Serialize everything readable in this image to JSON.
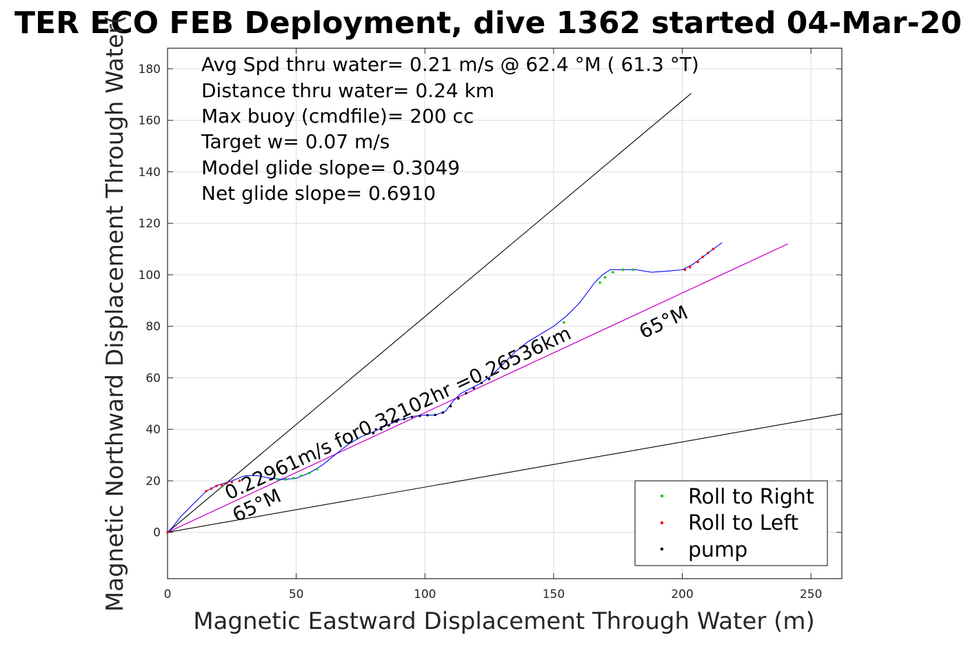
{
  "chart_data": {
    "type": "line",
    "title": "TER ECO FEB Deployment, dive 1362 started 04-Mar-20",
    "xlabel": "Magnetic Eastward Displacement Through Water (m)",
    "ylabel": "Magnetic Northward Displacement Through Water(",
    "xlim": [
      0,
      262
    ],
    "ylim": [
      -18,
      188
    ],
    "xticks": [
      0,
      50,
      100,
      150,
      200,
      250
    ],
    "yticks": [
      0,
      20,
      40,
      60,
      80,
      100,
      120,
      140,
      160,
      180
    ],
    "grid": true,
    "legend_position": "bottom-right",
    "info_lines": [
      "Avg Spd thru water=  0.21 m/s @  62.4 °M ( 61.3 °T)",
      "Distance thru water=  0.24 km",
      "Max buoy (cmdfile)= 200 cc",
      "Target w= 0.07 m/s",
      "Model glide slope= 0.3049",
      "Net glide slope= 0.6910"
    ],
    "track_label": "0.22961m/s for0.32102hr =0.26536km",
    "heading_labels": [
      "65°M",
      "65°M"
    ],
    "colors": {
      "track": "#0000ff",
      "heading_line": "#cc00cc",
      "roll_right": "#00cc00",
      "roll_left": "#ff0000",
      "pump": "#000000",
      "wedge": "#000000"
    },
    "wedge_lines": [
      {
        "x": [
          0,
          203.5
        ],
        "y": [
          0,
          170.5
        ]
      },
      {
        "x": [
          0,
          262
        ],
        "y": [
          0,
          46
        ]
      }
    ],
    "heading_line": {
      "x": [
        0,
        241
      ],
      "y": [
        0,
        112
      ]
    },
    "track": {
      "x": [
        0,
        2,
        5,
        10,
        15,
        20,
        25,
        30,
        35,
        40,
        45,
        50,
        55,
        60,
        65,
        70,
        75,
        80,
        85,
        90,
        95,
        100,
        104,
        108,
        111,
        114,
        118,
        122,
        126,
        130,
        135,
        140,
        145,
        150,
        155,
        160,
        163,
        166,
        169,
        172,
        176,
        182,
        188,
        195,
        200,
        204,
        208,
        212,
        215.5
      ],
      "y": [
        0,
        2,
        6,
        11,
        16,
        18.5,
        20,
        22,
        22,
        21,
        20.5,
        21,
        23,
        26,
        30,
        34,
        37,
        39,
        41.5,
        43.5,
        45,
        45.5,
        45.5,
        47,
        51,
        54,
        56,
        58,
        61,
        65,
        70,
        74,
        77,
        80,
        84,
        89,
        93,
        97,
        100,
        102,
        102,
        102,
        101,
        101.5,
        102,
        104,
        107,
        110,
        112.5
      ]
    },
    "series": [
      {
        "name": "Roll to Right",
        "x": [
          43,
          46,
          49,
          52,
          55,
          58,
          154,
          168,
          170,
          173,
          177,
          181
        ],
        "y": [
          20.5,
          20.6,
          21,
          22,
          23,
          24.5,
          81.5,
          97,
          99,
          101,
          102,
          102
        ]
      },
      {
        "name": "Roll to Left",
        "x": [
          0,
          15,
          17,
          19,
          21,
          23,
          25,
          28,
          201,
          203,
          206,
          208,
          210,
          212
        ],
        "y": [
          0,
          16,
          17,
          18,
          18.5,
          19,
          19.5,
          20,
          102,
          103,
          105,
          107,
          108.5,
          110
        ]
      },
      {
        "name": "pump",
        "x": [
          80,
          83,
          86,
          89,
          92,
          95,
          98,
          101,
          104,
          107,
          110,
          113,
          116,
          119,
          122,
          125
        ],
        "y": [
          38.5,
          40,
          41.5,
          43,
          44,
          44.8,
          45.2,
          45.5,
          45.6,
          46.5,
          49,
          52,
          54,
          56,
          58,
          59.5
        ]
      }
    ]
  }
}
